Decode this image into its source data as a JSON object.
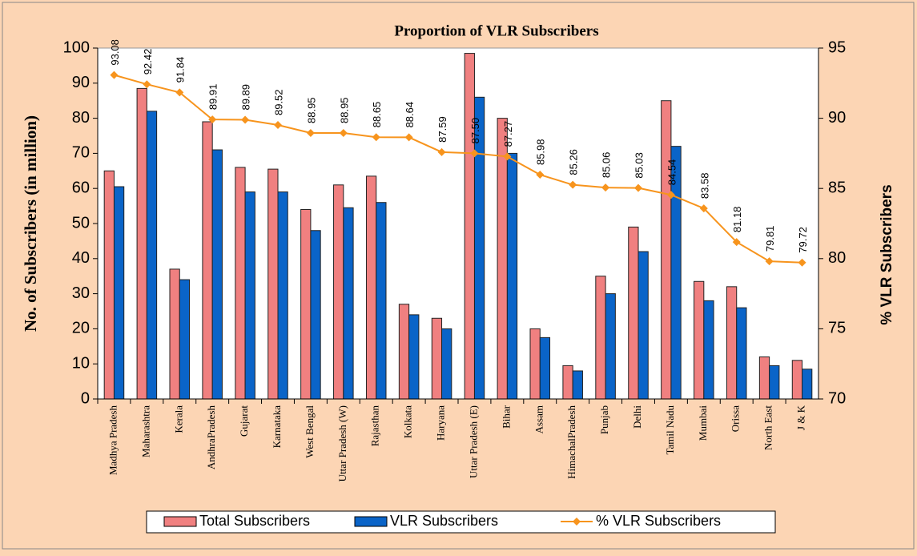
{
  "chart_data": {
    "type": "bar",
    "title": "Proportion of VLR Subscribers",
    "y_label": "No. of Subscribers (in million)",
    "y2_label": "% VLR Subscribers",
    "categories": [
      "Madhya Pradesh",
      "Maharashtra",
      "Kerala",
      "AndhraPradesh",
      "Gujarat",
      "Karnataka",
      "West Bengal",
      "Uttar Pradesh (W)",
      "Rajasthan",
      "Kolkata",
      "Haryana",
      "Uttar Pradesh (E)",
      "Bihar",
      "Assam",
      "HimachalPradesh",
      "Punjab",
      "Delhi",
      "Tamil Nadu",
      "Mumbai",
      "Orissa",
      "North East",
      "J & K"
    ],
    "series": [
      {
        "name": "Total Subscribers",
        "color": "#f08080",
        "values": [
          65,
          88.5,
          37,
          79,
          66,
          65.5,
          54,
          61,
          63.5,
          27,
          23,
          98.5,
          80,
          20,
          9.5,
          35,
          49,
          85,
          33.5,
          32,
          12,
          11
        ]
      },
      {
        "name": "VLR Subscribers",
        "color": "#0a64c8",
        "values": [
          60.5,
          82,
          34,
          71,
          59,
          59,
          48,
          54.5,
          56,
          24,
          20,
          86,
          70,
          17.5,
          8,
          30,
          42,
          72,
          28,
          26,
          9.5,
          8.5
        ]
      },
      {
        "name": "% VLR Subscribers",
        "color": "#f7941d",
        "type": "line",
        "axis": "y2",
        "values": [
          93.08,
          92.42,
          91.84,
          89.91,
          89.89,
          89.52,
          88.95,
          88.95,
          88.65,
          88.64,
          87.59,
          87.5,
          87.27,
          85.98,
          85.26,
          85.06,
          85.03,
          84.54,
          83.58,
          81.18,
          79.81,
          79.72
        ],
        "value_labels": [
          "93.08",
          "92.42",
          "91.84",
          "89.91",
          "89.89",
          "89.52",
          "88.95",
          "88.95",
          "88.65",
          "88.64",
          "87.59",
          "87.50",
          "87.27",
          "85.98",
          "85.26",
          "85.06",
          "85.03",
          "84.54",
          "83.58",
          "81.18",
          "79.81",
          "79.72"
        ]
      }
    ],
    "ylim": [
      0,
      100
    ],
    "yticks": [
      0,
      10,
      20,
      30,
      40,
      50,
      60,
      70,
      80,
      90,
      100
    ],
    "y2lim": [
      70,
      95
    ],
    "y2ticks": [
      70,
      75,
      80,
      85,
      90,
      95
    ],
    "legend": "bottom"
  }
}
